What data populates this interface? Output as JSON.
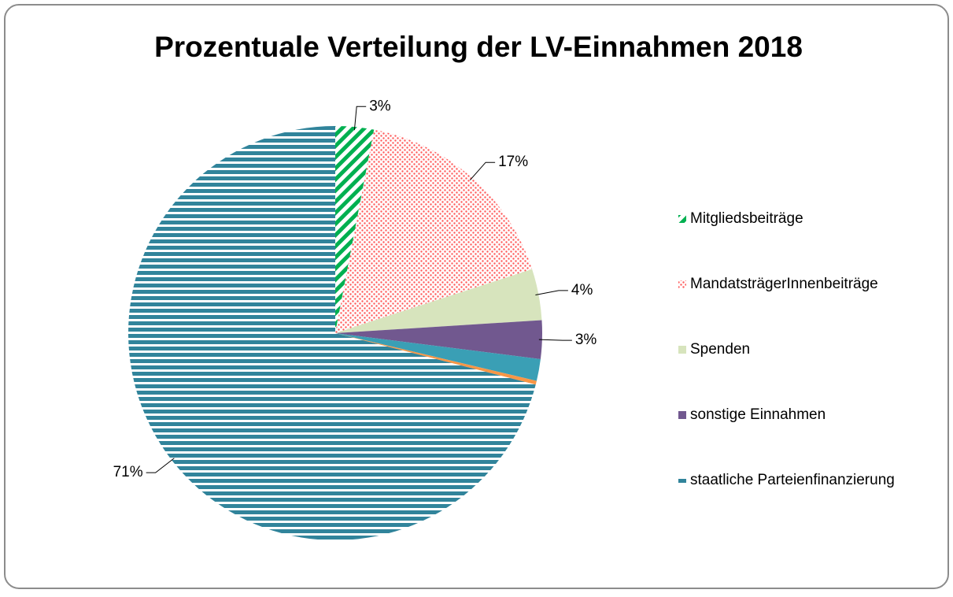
{
  "chart_data": {
    "type": "pie",
    "title": "Prozentuale Verteilung der LV-Einnahmen  2018",
    "categories": [
      "Mitgliedsbeiträge",
      "MandatsträgerInnenbeiträge",
      "Spenden",
      "sonstige Einnahmen",
      null,
      null,
      "staatliche Parteienfinanzierung"
    ],
    "values": [
      3,
      17,
      4,
      3,
      1.7,
      0.3,
      71
    ],
    "value_labels": [
      "3%",
      "17%",
      "4%",
      "3%",
      null,
      null,
      "71%"
    ],
    "colors": [
      "#00b050",
      "#ff5b5b",
      "#d7e4bd",
      "#71588f",
      "#3a9fb5",
      "#f79646",
      "#31849b"
    ],
    "patterns": [
      "diagonal",
      "dots",
      "solid",
      "solid",
      "solid",
      "solid",
      "horizontal"
    ],
    "legend": "right"
  }
}
